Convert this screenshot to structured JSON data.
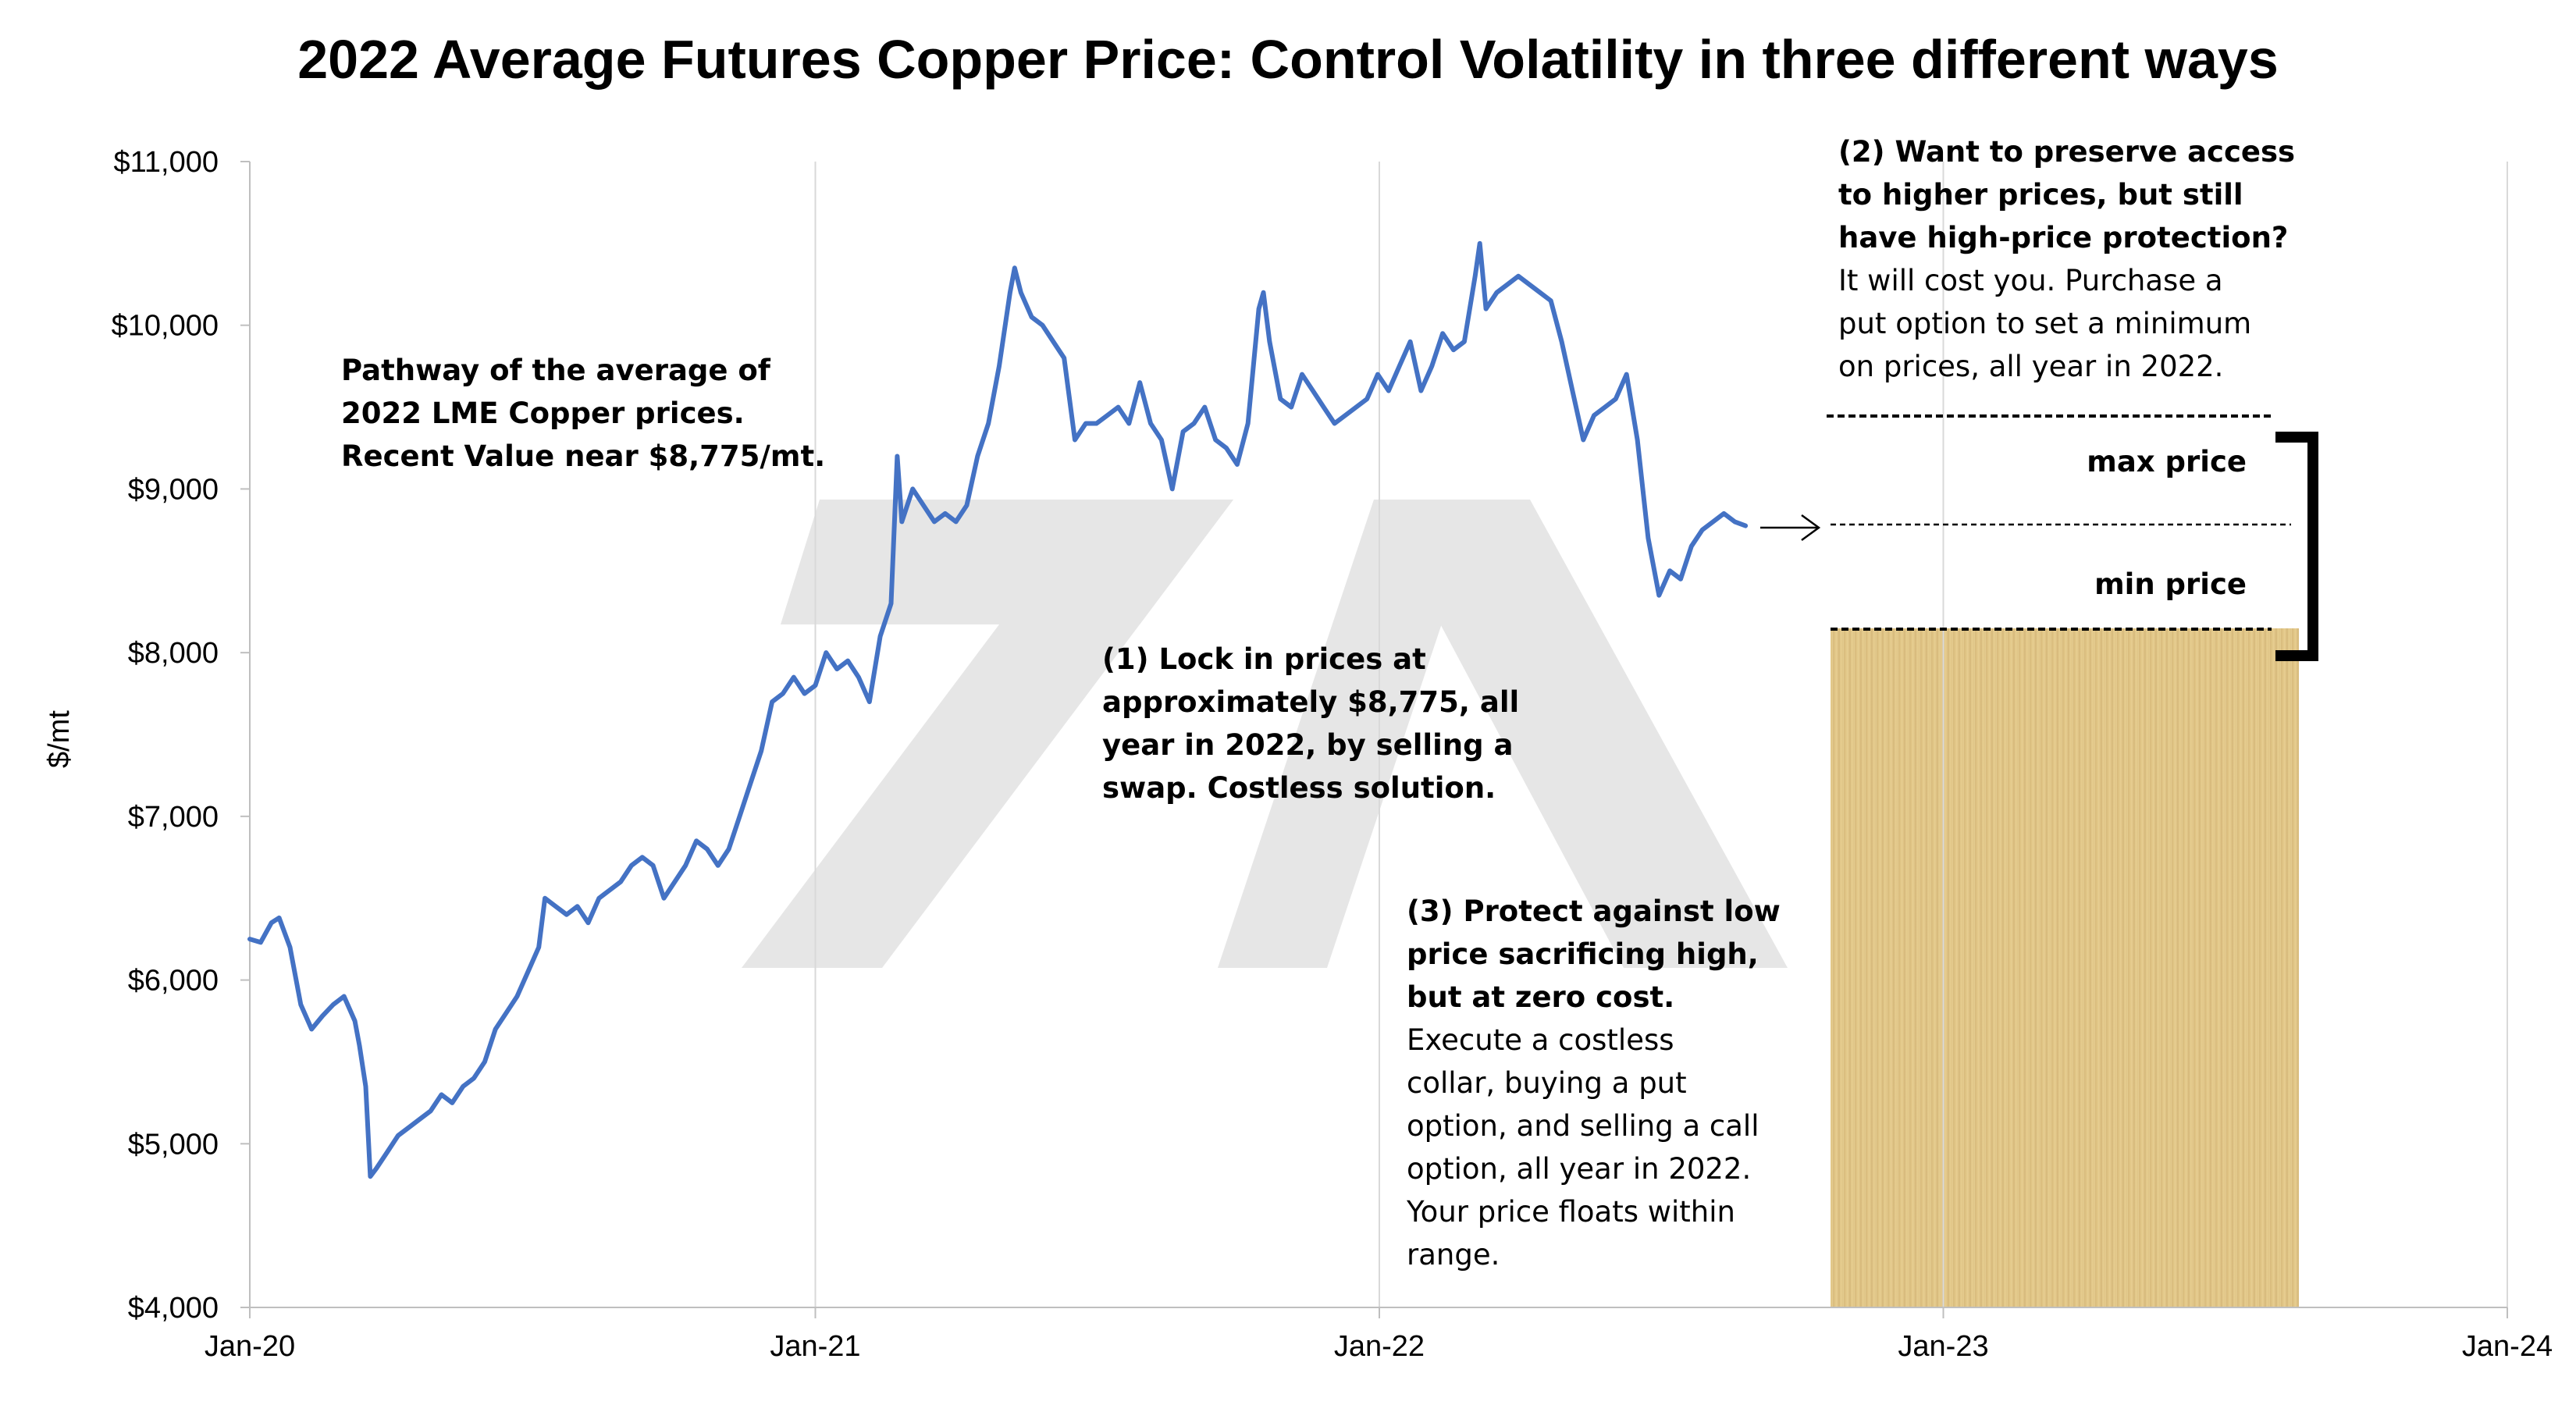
{
  "chart_data": {
    "type": "line",
    "title": "2022 Average Futures Copper Price: Control Volatility in three different ways",
    "xlabel": "",
    "ylabel": "$/mt",
    "xlim": [
      "2020-01-01",
      "2024-01-01"
    ],
    "ylim": [
      4000,
      11000
    ],
    "y_ticks": [
      4000,
      5000,
      6000,
      7000,
      8000,
      9000,
      10000,
      11000
    ],
    "y_tick_labels": [
      "$4,000",
      "$5,000",
      "$6,000",
      "$7,000",
      "$8,000",
      "$9,000",
      "$10,000",
      "$11,000"
    ],
    "x_ticks": [
      "2020-01-01",
      "2021-01-01",
      "2022-01-01",
      "2023-01-01",
      "2024-01-01"
    ],
    "x_tick_labels": [
      "Jan-20",
      "Jan-21",
      "Jan-22",
      "Jan-23",
      "Jan-24"
    ],
    "grid": "vertical",
    "series": [
      {
        "name": "",
        "color": "#4472C4",
        "points": [
          [
            "2020-01-01",
            6250
          ],
          [
            "2020-01-08",
            6230
          ],
          [
            "2020-01-15",
            6350
          ],
          [
            "2020-01-20",
            6380
          ],
          [
            "2020-01-27",
            6200
          ],
          [
            "2020-02-03",
            5850
          ],
          [
            "2020-02-10",
            5700
          ],
          [
            "2020-02-17",
            5780
          ],
          [
            "2020-02-24",
            5850
          ],
          [
            "2020-03-02",
            5900
          ],
          [
            "2020-03-09",
            5750
          ],
          [
            "2020-03-12",
            5600
          ],
          [
            "2020-03-16",
            5350
          ],
          [
            "2020-03-19",
            4800
          ],
          [
            "2020-03-23",
            4850
          ],
          [
            "2020-03-30",
            4950
          ],
          [
            "2020-04-06",
            5050
          ],
          [
            "2020-04-13",
            5100
          ],
          [
            "2020-04-20",
            5150
          ],
          [
            "2020-04-27",
            5200
          ],
          [
            "2020-05-04",
            5300
          ],
          [
            "2020-05-11",
            5250
          ],
          [
            "2020-05-18",
            5350
          ],
          [
            "2020-05-25",
            5400
          ],
          [
            "2020-06-01",
            5500
          ],
          [
            "2020-06-08",
            5700
          ],
          [
            "2020-06-15",
            5800
          ],
          [
            "2020-06-22",
            5900
          ],
          [
            "2020-06-29",
            6050
          ],
          [
            "2020-07-06",
            6200
          ],
          [
            "2020-07-10",
            6500
          ],
          [
            "2020-07-17",
            6450
          ],
          [
            "2020-07-24",
            6400
          ],
          [
            "2020-07-31",
            6450
          ],
          [
            "2020-08-07",
            6350
          ],
          [
            "2020-08-14",
            6500
          ],
          [
            "2020-08-21",
            6550
          ],
          [
            "2020-08-28",
            6600
          ],
          [
            "2020-09-04",
            6700
          ],
          [
            "2020-09-11",
            6750
          ],
          [
            "2020-09-18",
            6700
          ],
          [
            "2020-09-25",
            6500
          ],
          [
            "2020-10-02",
            6600
          ],
          [
            "2020-10-09",
            6700
          ],
          [
            "2020-10-16",
            6850
          ],
          [
            "2020-10-23",
            6800
          ],
          [
            "2020-10-30",
            6700
          ],
          [
            "2020-11-06",
            6800
          ],
          [
            "2020-11-13",
            7000
          ],
          [
            "2020-11-20",
            7200
          ],
          [
            "2020-11-27",
            7400
          ],
          [
            "2020-12-04",
            7700
          ],
          [
            "2020-12-11",
            7750
          ],
          [
            "2020-12-18",
            7850
          ],
          [
            "2020-12-25",
            7750
          ],
          [
            "2021-01-01",
            7800
          ],
          [
            "2021-01-08",
            8000
          ],
          [
            "2021-01-15",
            7900
          ],
          [
            "2021-01-22",
            7950
          ],
          [
            "2021-01-29",
            7850
          ],
          [
            "2021-02-05",
            7700
          ],
          [
            "2021-02-12",
            8100
          ],
          [
            "2021-02-19",
            8300
          ],
          [
            "2021-02-23",
            9200
          ],
          [
            "2021-02-26",
            8800
          ],
          [
            "2021-03-05",
            9000
          ],
          [
            "2021-03-12",
            8900
          ],
          [
            "2021-03-19",
            8800
          ],
          [
            "2021-03-26",
            8850
          ],
          [
            "2021-04-02",
            8800
          ],
          [
            "2021-04-09",
            8900
          ],
          [
            "2021-04-16",
            9200
          ],
          [
            "2021-04-23",
            9400
          ],
          [
            "2021-04-30",
            9750
          ],
          [
            "2021-05-07",
            10200
          ],
          [
            "2021-05-10",
            10350
          ],
          [
            "2021-05-14",
            10200
          ],
          [
            "2021-05-21",
            10050
          ],
          [
            "2021-05-28",
            10000
          ],
          [
            "2021-06-04",
            9900
          ],
          [
            "2021-06-11",
            9800
          ],
          [
            "2021-06-18",
            9300
          ],
          [
            "2021-06-25",
            9400
          ],
          [
            "2021-07-02",
            9400
          ],
          [
            "2021-07-09",
            9450
          ],
          [
            "2021-07-16",
            9500
          ],
          [
            "2021-07-23",
            9400
          ],
          [
            "2021-07-30",
            9650
          ],
          [
            "2021-08-06",
            9400
          ],
          [
            "2021-08-13",
            9300
          ],
          [
            "2021-08-20",
            9000
          ],
          [
            "2021-08-27",
            9350
          ],
          [
            "2021-09-03",
            9400
          ],
          [
            "2021-09-10",
            9500
          ],
          [
            "2021-09-17",
            9300
          ],
          [
            "2021-09-24",
            9250
          ],
          [
            "2021-10-01",
            9150
          ],
          [
            "2021-10-08",
            9400
          ],
          [
            "2021-10-15",
            10100
          ],
          [
            "2021-10-18",
            10200
          ],
          [
            "2021-10-22",
            9900
          ],
          [
            "2021-10-29",
            9550
          ],
          [
            "2021-11-05",
            9500
          ],
          [
            "2021-11-12",
            9700
          ],
          [
            "2021-11-19",
            9600
          ],
          [
            "2021-11-26",
            9500
          ],
          [
            "2021-12-03",
            9400
          ],
          [
            "2021-12-10",
            9450
          ],
          [
            "2021-12-17",
            9500
          ],
          [
            "2021-12-24",
            9550
          ],
          [
            "2021-12-31",
            9700
          ],
          [
            "2022-01-07",
            9600
          ],
          [
            "2022-01-14",
            9750
          ],
          [
            "2022-01-21",
            9900
          ],
          [
            "2022-01-28",
            9600
          ],
          [
            "2022-02-04",
            9750
          ],
          [
            "2022-02-11",
            9950
          ],
          [
            "2022-02-18",
            9850
          ],
          [
            "2022-02-25",
            9900
          ],
          [
            "2022-03-04",
            10300
          ],
          [
            "2022-03-07",
            10500
          ],
          [
            "2022-03-11",
            10100
          ],
          [
            "2022-03-18",
            10200
          ],
          [
            "2022-03-25",
            10250
          ],
          [
            "2022-04-01",
            10300
          ],
          [
            "2022-04-08",
            10250
          ],
          [
            "2022-04-15",
            10200
          ],
          [
            "2022-04-22",
            10150
          ],
          [
            "2022-04-29",
            9900
          ],
          [
            "2022-05-06",
            9600
          ],
          [
            "2022-05-13",
            9300
          ],
          [
            "2022-05-20",
            9450
          ],
          [
            "2022-05-27",
            9500
          ],
          [
            "2022-06-03",
            9550
          ],
          [
            "2022-06-10",
            9700
          ],
          [
            "2022-06-17",
            9300
          ],
          [
            "2022-06-24",
            8700
          ],
          [
            "2022-07-01",
            8350
          ],
          [
            "2022-07-08",
            8500
          ],
          [
            "2022-07-15",
            8450
          ],
          [
            "2022-07-22",
            8650
          ],
          [
            "2022-07-29",
            8750
          ],
          [
            "2022-08-05",
            8800
          ],
          [
            "2022-08-12",
            8850
          ],
          [
            "2022-08-19",
            8800
          ],
          [
            "2022-08-26",
            8775
          ]
        ]
      }
    ],
    "annotations": [
      {
        "id": "pathway-note",
        "text_bold": [
          "Pathway of the average of",
          "2022 LME Copper prices.",
          "Recent Value near $8,775/mt."
        ],
        "text": []
      },
      {
        "id": "lock-note",
        "text_bold": [
          "(1) Lock in prices at",
          "approximately $8,775, all",
          "year in 2022, by selling a",
          "swap. Costless solution."
        ],
        "text": []
      },
      {
        "id": "collar-note",
        "text_bold": [
          "(3) Protect against low",
          "price sacrificing high,",
          "but at zero cost."
        ],
        "text": [
          "Execute a costless",
          "collar, buying a put",
          "option, and selling a call",
          "option, all year in 2022.",
          "Your price floats within",
          "range."
        ]
      },
      {
        "id": "put-note",
        "text_bold": [
          "(2) Want to preserve access",
          "to higher prices, but still",
          "have high-price protection?"
        ],
        "text": [
          "It will cost you. Purchase a",
          "put option to set a minimum",
          "on prices, all year in 2022."
        ]
      }
    ],
    "range_labels": {
      "max": "max price",
      "min": "min price"
    },
    "colors": {
      "line": "#4472C4",
      "grid": "#d9d9d9",
      "parchment": "#e2c98a",
      "watermark": "#e4e4e4"
    }
  }
}
